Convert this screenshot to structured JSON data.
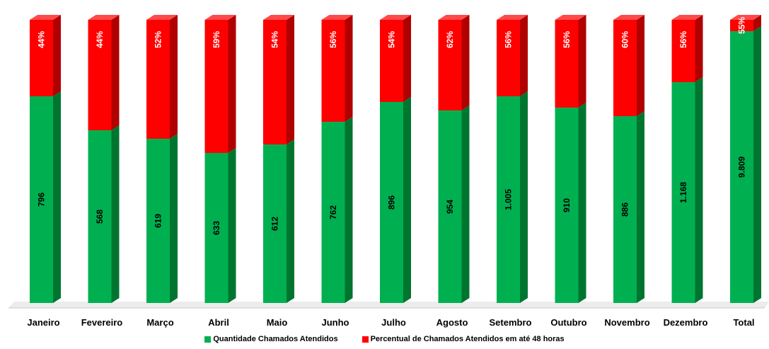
{
  "colors": {
    "green_front": "#00B050",
    "green_side": "#00752F",
    "green_top": "#3FCB7B",
    "red_front": "#FF0000",
    "red_side": "#B00000",
    "red_top": "#FF4A4A"
  },
  "chart_data": {
    "type": "bar",
    "stacked": true,
    "percent_stacked": true,
    "three_d": true,
    "categories": [
      "Janeiro",
      "Fevereiro",
      "Março",
      "Abril",
      "Maio",
      "Junho",
      "Julho",
      "Agosto",
      "Setembro",
      "Outubro",
      "Novembro",
      "Dezembro",
      "Total"
    ],
    "series": [
      {
        "name": "Quantidade Chamados Atendidos",
        "color": "#00B050",
        "values": [
          796,
          568,
          619,
          633,
          612,
          762,
          896,
          954,
          1005,
          910,
          886,
          1168,
          9809
        ],
        "labels": [
          "796",
          "568",
          "619",
          "633",
          "612",
          "762",
          "896",
          "954",
          "1.005",
          "910",
          "886",
          "1.168",
          "9.809"
        ],
        "share_of_bar": [
          0.73,
          0.61,
          0.58,
          0.53,
          0.56,
          0.64,
          0.71,
          0.68,
          0.73,
          0.69,
          0.66,
          0.78,
          0.96
        ]
      },
      {
        "name": "Percentual de Chamados Atendidos em até 48 horas",
        "color": "#FF0000",
        "labels": [
          "44%",
          "44%",
          "52%",
          "59%",
          "54%",
          "56%",
          "54%",
          "62%",
          "56%",
          "56%",
          "60%",
          "56%",
          "55%"
        ]
      }
    ],
    "legend_position": "bottom",
    "grid": false
  }
}
